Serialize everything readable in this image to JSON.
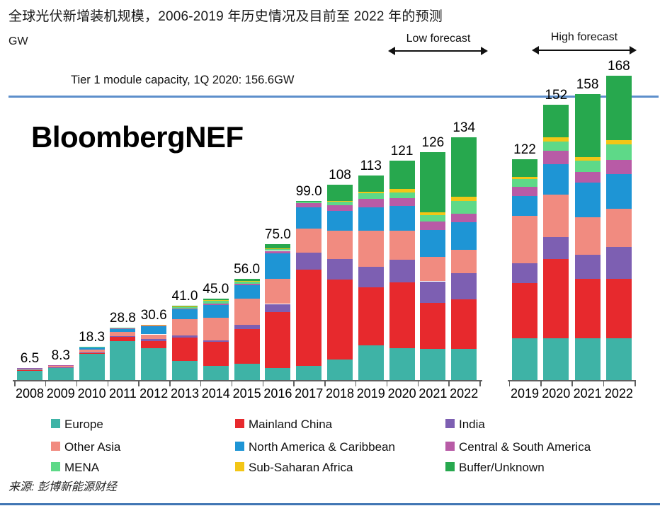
{
  "header": {
    "title": "全球光伏新增装机规模，2006-2019 年历史情况及目前至 2022 年的预测",
    "unit_label": "GW",
    "low_forecast_label": "Low forecast",
    "high_forecast_label": "High forecast"
  },
  "watermark": "BloombergNEF",
  "source": "来源: 彭博新能源财经",
  "chart_data": {
    "type": "bar",
    "stacked": true,
    "unit": "GW",
    "grid": false,
    "ylim": [
      0,
      175
    ],
    "reference_line": {
      "label": "Tier 1 module capacity, 1Q 2020: 156.6GW",
      "value": 156.6,
      "color": "#5d8fcb"
    },
    "series": [
      {
        "name": "Europe",
        "color": "#3eb3a6"
      },
      {
        "name": "Mainland China",
        "color": "#e7292d"
      },
      {
        "name": "India",
        "color": "#7d5fb2"
      },
      {
        "name": "Other Asia",
        "color": "#f18b80"
      },
      {
        "name": "North America & Caribbean",
        "color": "#1e95d5"
      },
      {
        "name": "Central & South America",
        "color": "#b85ba6"
      },
      {
        "name": "MENA",
        "color": "#5ed988"
      },
      {
        "name": "Sub-Saharan Africa",
        "color": "#f3c616"
      },
      {
        "name": "Buffer/Unknown",
        "color": "#27a84e"
      }
    ],
    "groups": [
      {
        "name": "historical-and-low-forecast",
        "years": [
          "2008",
          "2009",
          "2010",
          "2011",
          "2012",
          "2013",
          "2014",
          "2015",
          "2016",
          "2017",
          "2018",
          "2019",
          "2020",
          "2021",
          "2022"
        ],
        "totals_label": [
          "6.5",
          "8.3",
          "18.3",
          "28.8",
          "30.6",
          "41.0",
          "45.0",
          "56.0",
          "75.0",
          "99.0",
          "108",
          "113",
          "121",
          "126",
          "134"
        ],
        "totals": [
          6.5,
          8.3,
          18.3,
          28.8,
          30.6,
          41.0,
          45.0,
          56.0,
          75.0,
          99.0,
          108,
          113,
          121,
          126,
          134
        ],
        "stacks": [
          [
            5.3,
            0.2,
            0,
            0.5,
            0.4,
            0.1,
            0,
            0,
            0
          ],
          [
            6.6,
            0.4,
            0.1,
            0.6,
            0.5,
            0.1,
            0,
            0,
            0
          ],
          [
            14.5,
            0.5,
            0.1,
            1.6,
            1.4,
            0.1,
            0.1,
            0,
            0
          ],
          [
            21.5,
            2.5,
            0.3,
            2.2,
            2.0,
            0.2,
            0.1,
            0,
            0
          ],
          [
            17.5,
            4.0,
            1.0,
            2.7,
            4.5,
            0.5,
            0.3,
            0.1,
            0
          ],
          [
            10.5,
            13.0,
            1.0,
            9.0,
            5.5,
            0.6,
            1.0,
            0.2,
            0.2
          ],
          [
            8.0,
            13.0,
            1.0,
            12.5,
            7.0,
            0.8,
            1.5,
            0.2,
            1.0
          ],
          [
            9.0,
            19.0,
            2.5,
            14.5,
            7.3,
            0.8,
            1.3,
            0.2,
            1.4
          ],
          [
            6.5,
            31.0,
            4.5,
            14.0,
            14.0,
            1.3,
            1.2,
            0.3,
            2.2
          ],
          [
            8.0,
            53.0,
            9.5,
            13.0,
            12.0,
            2.0,
            1.0,
            0.3,
            0.2
          ],
          [
            11.5,
            44.0,
            11.5,
            15.5,
            11.0,
            3.0,
            2.0,
            0.5,
            9.0
          ],
          [
            19.0,
            32.0,
            11.5,
            20.0,
            13.0,
            4.5,
            3.0,
            1.0,
            9.0
          ],
          [
            17.5,
            36.5,
            12.5,
            16.0,
            13.5,
            4.5,
            3.2,
            1.8,
            15.5
          ],
          [
            17.0,
            25.5,
            12.0,
            13.5,
            15.0,
            4.5,
            3.6,
            1.4,
            33.5
          ],
          [
            17.0,
            27.5,
            14.5,
            13.0,
            15.0,
            5.0,
            7.0,
            2.0,
            33.0
          ]
        ]
      },
      {
        "name": "high-forecast",
        "years": [
          "2019",
          "2020",
          "2021",
          "2022"
        ],
        "totals_label": [
          "122",
          "152",
          "158",
          "168"
        ],
        "totals": [
          122,
          152,
          158,
          168
        ],
        "stacks": [
          [
            23.0,
            30.5,
            11.0,
            26.0,
            11.0,
            5.0,
            4.5,
            1.3,
            9.7
          ],
          [
            23.0,
            44.0,
            12.0,
            23.5,
            16.5,
            7.5,
            5.0,
            2.5,
            18.0
          ],
          [
            23.0,
            33.0,
            13.0,
            21.0,
            19.0,
            6.0,
            6.0,
            2.0,
            35.0
          ],
          [
            23.0,
            33.0,
            17.5,
            21.0,
            19.0,
            8.0,
            8.5,
            2.5,
            35.5
          ]
        ]
      }
    ],
    "legend": {
      "position": "bottom",
      "rows": [
        [
          "Europe",
          "Mainland China",
          "India"
        ],
        [
          "Other Asia",
          "North America & Caribbean",
          "Central & South America"
        ],
        [
          "MENA",
          "Sub-Saharan Africa",
          "Buffer/Unknown"
        ]
      ]
    }
  }
}
